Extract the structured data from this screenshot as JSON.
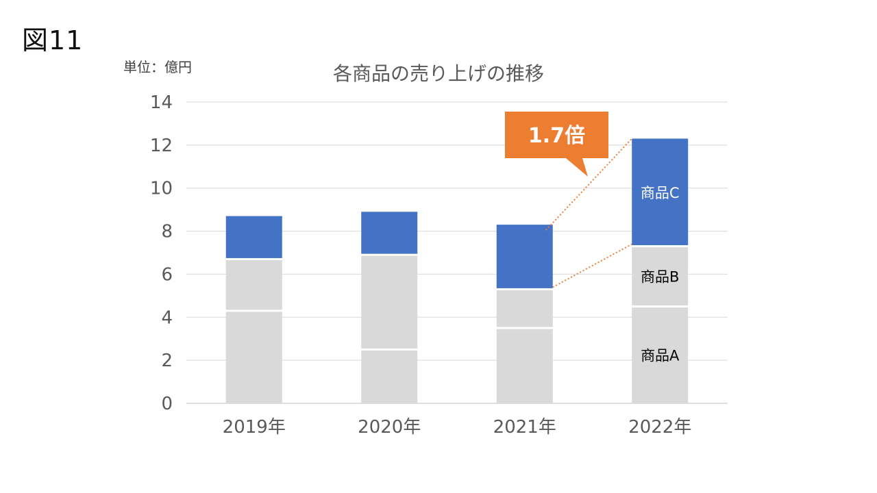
{
  "figure_label": "図11",
  "chart_data": {
    "type": "bar",
    "stacked": true,
    "title": "各商品の売り上げの推移",
    "unit_label": "単位：億円",
    "categories": [
      "2019年",
      "2020年",
      "2021年",
      "2022年"
    ],
    "series": [
      {
        "name": "商品A",
        "values": [
          4.3,
          2.5,
          3.5,
          4.5
        ],
        "color": "#d9d9d9",
        "label_color": "#000000"
      },
      {
        "name": "商品B",
        "values": [
          2.4,
          4.4,
          1.8,
          2.8
        ],
        "color": "#d9d9d9",
        "label_color": "#000000"
      },
      {
        "name": "商品C",
        "values": [
          2.0,
          2.0,
          3.0,
          5.0
        ],
        "color": "#4472c4",
        "label_color": "#ffffff"
      }
    ],
    "ylim": [
      0,
      14
    ],
    "yticks": [
      0,
      2,
      4,
      6,
      8,
      10,
      12,
      14
    ],
    "grid": true,
    "label_series_in_category": "2022年",
    "callout": {
      "text": "1.7倍",
      "color": "#ed7d31",
      "from_category": "2021年",
      "to_category": "2022年"
    }
  }
}
